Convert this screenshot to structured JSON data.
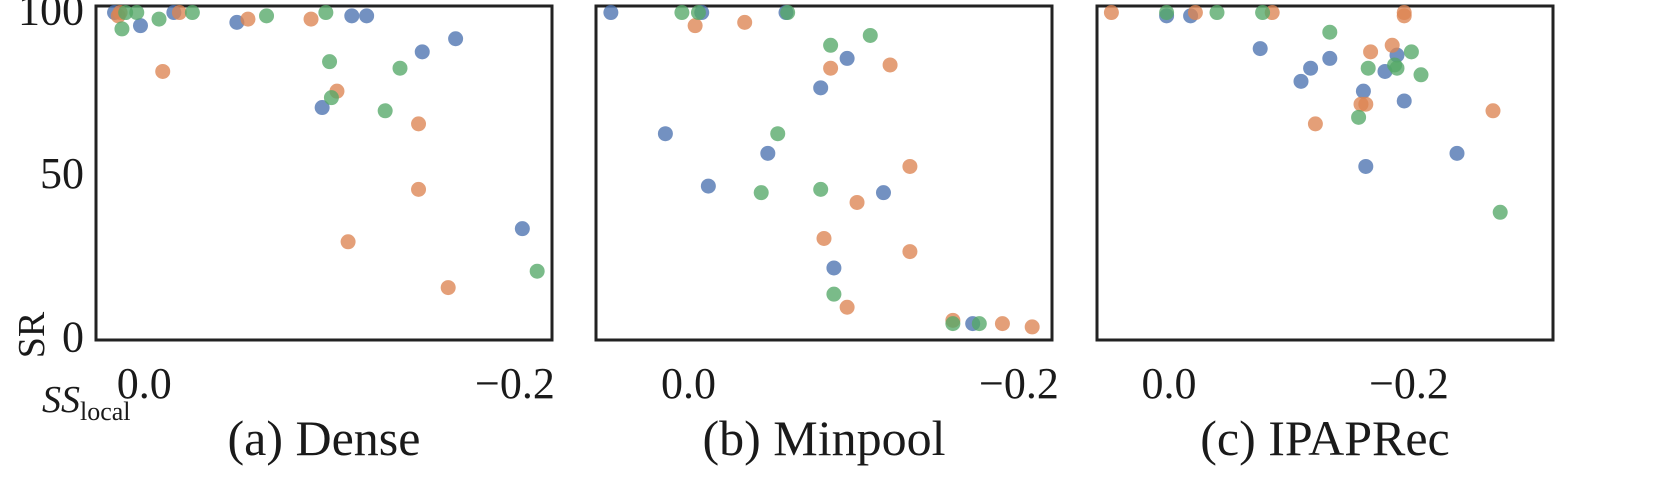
{
  "colors": {
    "blue": "#4c72b0",
    "orange": "#dd8452",
    "green": "#55a868"
  },
  "labels": {
    "y": "SR",
    "x_main": "SS",
    "x_sub": "local"
  },
  "chart_data": [
    {
      "type": "scatter",
      "caption": "(a) Dense",
      "xlim": [
        0.026,
        -0.22
      ],
      "ylim": [
        -1,
        101
      ],
      "xticks": [
        0.0,
        -0.2
      ],
      "xtick_labels": [
        "0.0",
        "−0.2"
      ],
      "yticks": [
        0,
        50,
        100
      ],
      "ytick_labels": [
        "0",
        "50",
        "100"
      ],
      "series": [
        {
          "color": "blue",
          "points": [
            [
              0.016,
              99
            ],
            [
              0.002,
              95
            ],
            [
              -0.016,
              99
            ],
            [
              -0.05,
              96
            ],
            [
              -0.096,
              70
            ],
            [
              -0.112,
              98
            ],
            [
              -0.12,
              98
            ],
            [
              -0.15,
              87
            ],
            [
              -0.168,
              91
            ],
            [
              -0.204,
              33
            ]
          ]
        },
        {
          "color": "orange",
          "points": [
            [
              0.014,
              98
            ],
            [
              0.013,
              99
            ],
            [
              -0.01,
              81
            ],
            [
              -0.019,
              99
            ],
            [
              -0.056,
              97
            ],
            [
              -0.09,
              97
            ],
            [
              -0.104,
              75
            ],
            [
              -0.11,
              29
            ],
            [
              -0.148,
              65
            ],
            [
              -0.148,
              45
            ],
            [
              -0.164,
              15
            ]
          ]
        },
        {
          "color": "green",
          "points": [
            [
              0.01,
              99
            ],
            [
              0.012,
              94
            ],
            [
              0.004,
              99
            ],
            [
              -0.008,
              97
            ],
            [
              -0.026,
              99
            ],
            [
              -0.066,
              98
            ],
            [
              -0.098,
              99
            ],
            [
              -0.1,
              84
            ],
            [
              -0.101,
              73
            ],
            [
              -0.13,
              69
            ],
            [
              -0.138,
              82
            ],
            [
              -0.212,
              20
            ]
          ]
        }
      ]
    },
    {
      "type": "scatter",
      "caption": "(b) Minpool",
      "xlim": [
        0.056,
        -0.22
      ],
      "ylim": [
        -1,
        101
      ],
      "xticks": [
        0.0,
        -0.2
      ],
      "xtick_labels": [
        "0.0",
        "−0.2"
      ],
      "yticks": [
        0,
        50,
        100
      ],
      "ytick_labels": [
        "0",
        "50",
        "100"
      ],
      "series": [
        {
          "color": "blue",
          "points": [
            [
              0.047,
              99
            ],
            [
              0.014,
              62
            ],
            [
              -0.008,
              99
            ],
            [
              -0.012,
              46
            ],
            [
              -0.048,
              56
            ],
            [
              -0.059,
              99
            ],
            [
              -0.08,
              76
            ],
            [
              -0.088,
              21
            ],
            [
              -0.096,
              85
            ],
            [
              -0.118,
              44
            ],
            [
              -0.172,
              4
            ]
          ]
        },
        {
          "color": "orange",
          "points": [
            [
              -0.004,
              95
            ],
            [
              -0.034,
              96
            ],
            [
              -0.082,
              30
            ],
            [
              -0.086,
              82
            ],
            [
              -0.096,
              9
            ],
            [
              -0.102,
              41
            ],
            [
              -0.122,
              83
            ],
            [
              -0.134,
              52
            ],
            [
              -0.134,
              26
            ],
            [
              -0.16,
              5
            ],
            [
              -0.19,
              4
            ],
            [
              -0.208,
              3
            ]
          ]
        },
        {
          "color": "green",
          "points": [
            [
              0.004,
              99
            ],
            [
              -0.006,
              99
            ],
            [
              -0.044,
              44
            ],
            [
              -0.06,
              99
            ],
            [
              -0.054,
              62
            ],
            [
              -0.08,
              45
            ],
            [
              -0.086,
              89
            ],
            [
              -0.088,
              13
            ],
            [
              -0.11,
              92
            ],
            [
              -0.16,
              4
            ],
            [
              -0.176,
              4
            ]
          ]
        }
      ]
    },
    {
      "type": "scatter",
      "caption": "(c) IPAPRec",
      "xlim": [
        0.06,
        -0.32
      ],
      "ylim": [
        -1,
        101
      ],
      "xticks": [
        0.0,
        -0.2
      ],
      "xtick_labels": [
        "0.0",
        "−0.2"
      ],
      "yticks": [
        0,
        50,
        100
      ],
      "ytick_labels": [
        "0",
        "50",
        "100"
      ],
      "series": [
        {
          "color": "blue",
          "points": [
            [
              0.002,
              98
            ],
            [
              -0.018,
              98
            ],
            [
              -0.076,
              88
            ],
            [
              -0.11,
              78
            ],
            [
              -0.118,
              82
            ],
            [
              -0.134,
              85
            ],
            [
              -0.162,
              75
            ],
            [
              -0.18,
              81
            ],
            [
              -0.19,
              86
            ],
            [
              -0.196,
              72
            ],
            [
              -0.164,
              52
            ],
            [
              -0.24,
              56
            ]
          ]
        },
        {
          "color": "orange",
          "points": [
            [
              0.048,
              99
            ],
            [
              -0.022,
              99
            ],
            [
              -0.086,
              99
            ],
            [
              -0.122,
              65
            ],
            [
              -0.16,
              71
            ],
            [
              -0.164,
              71
            ],
            [
              -0.168,
              87
            ],
            [
              -0.186,
              89
            ],
            [
              -0.196,
              98
            ],
            [
              -0.196,
              99
            ],
            [
              -0.27,
              69
            ]
          ]
        },
        {
          "color": "green",
          "points": [
            [
              0.002,
              99
            ],
            [
              -0.04,
              99
            ],
            [
              -0.078,
              99
            ],
            [
              -0.134,
              93
            ],
            [
              -0.158,
              67
            ],
            [
              -0.166,
              82
            ],
            [
              -0.188,
              83
            ],
            [
              -0.19,
              82
            ],
            [
              -0.202,
              87
            ],
            [
              -0.21,
              80
            ],
            [
              -0.276,
              38
            ]
          ]
        }
      ]
    }
  ]
}
